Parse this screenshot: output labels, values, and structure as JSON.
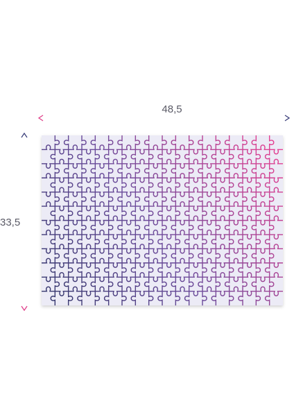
{
  "width_label": "48,5",
  "height_label": "33,5"
}
